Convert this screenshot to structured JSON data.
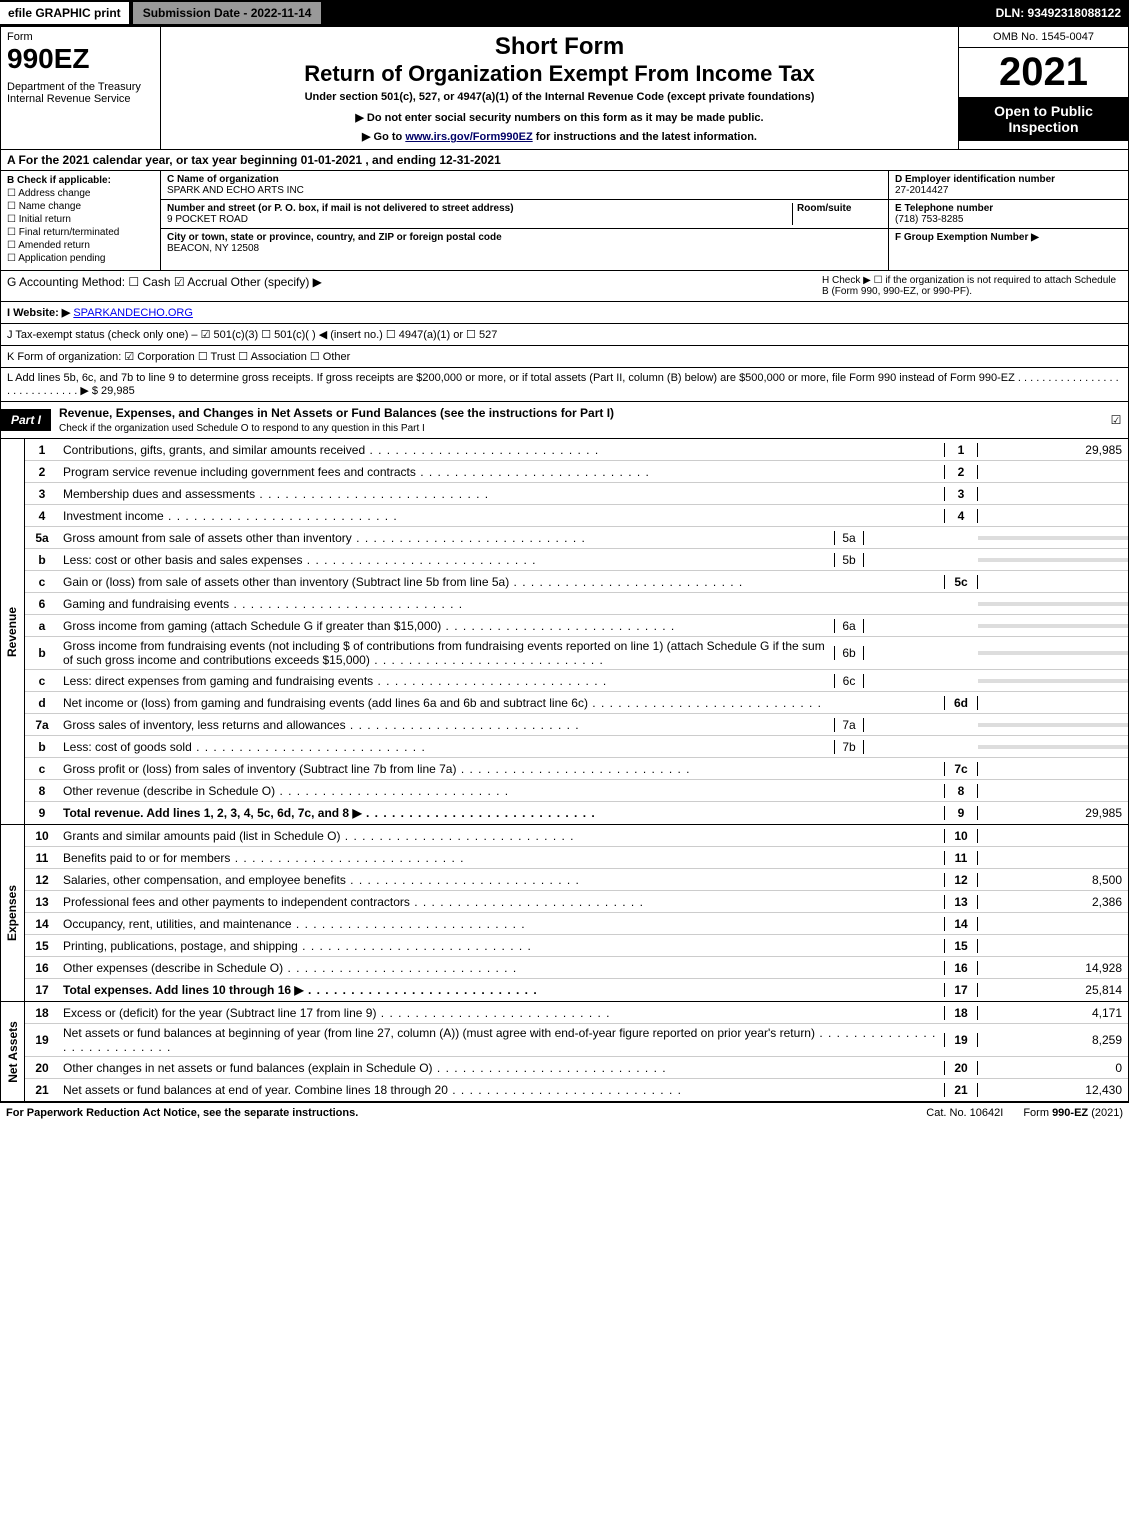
{
  "topbar": {
    "efile": "efile GRAPHIC print",
    "submission": "Submission Date - 2022-11-14",
    "dln": "DLN: 93492318088122"
  },
  "header": {
    "form_word": "Form",
    "form_num": "990EZ",
    "dept": "Department of the Treasury\nInternal Revenue Service",
    "short": "Short Form",
    "return": "Return of Organization Exempt From Income Tax",
    "under": "Under section 501(c), 527, or 4947(a)(1) of the Internal Revenue Code (except private foundations)",
    "note": "▶ Do not enter social security numbers on this form as it may be made public.",
    "goto_pre": "▶ Go to ",
    "goto_link": "www.irs.gov/Form990EZ",
    "goto_post": " for instructions and the latest information.",
    "omb": "OMB No. 1545-0047",
    "year": "2021",
    "open": "Open to Public Inspection"
  },
  "row_a": "A  For the 2021 calendar year, or tax year beginning 01-01-2021 , and ending 12-31-2021",
  "section_b": {
    "title": "B  Check if applicable:",
    "opts": [
      "Address change",
      "Name change",
      "Initial return",
      "Final return/terminated",
      "Amended return",
      "Application pending"
    ]
  },
  "section_c": {
    "name_lbl": "C Name of organization",
    "name": "SPARK AND ECHO ARTS INC",
    "street_lbl": "Number and street (or P. O. box, if mail is not delivered to street address)",
    "room_lbl": "Room/suite",
    "street": "9 POCKET ROAD",
    "city_lbl": "City or town, state or province, country, and ZIP or foreign postal code",
    "city": "BEACON, NY  12508"
  },
  "section_d": {
    "ein_lbl": "D Employer identification number",
    "ein": "27-2014427",
    "tel_lbl": "E Telephone number",
    "tel": "(718) 753-8285",
    "grp_lbl": "F Group Exemption Number   ▶"
  },
  "row_g": {
    "g": "G Accounting Method:   ☐ Cash   ☑ Accrual   Other (specify) ▶",
    "h": "H  Check ▶  ☐  if the organization is not required to attach Schedule B (Form 990, 990-EZ, or 990-PF)."
  },
  "row_i": {
    "label": "I Website: ▶",
    "link": "SPARKANDECHO.ORG"
  },
  "row_j": "J Tax-exempt status (check only one) – ☑ 501(c)(3) ☐ 501(c)(  ) ◀ (insert no.) ☐ 4947(a)(1) or ☐ 527",
  "row_k": "K Form of organization:   ☑ Corporation  ☐ Trust  ☐ Association  ☐ Other",
  "row_l": "L Add lines 5b, 6c, and 7b to line 9 to determine gross receipts. If gross receipts are $200,000 or more, or if total assets (Part II, column (B) below) are $500,000 or more, file Form 990 instead of Form 990-EZ . . . . . . . . . . . . . . . . . . . . . . . . . . . . . ▶ $ 29,985",
  "part1": {
    "tab": "Part I",
    "title": "Revenue, Expenses, and Changes in Net Assets or Fund Balances (see the instructions for Part I)",
    "sub": "Check if the organization used Schedule O to respond to any question in this Part I",
    "check": "☑"
  },
  "revenue_label": "Revenue",
  "expenses_label": "Expenses",
  "netassets_label": "Net Assets",
  "lines_rev": [
    {
      "n": "1",
      "d": "Contributions, gifts, grants, and similar amounts received",
      "r": "1",
      "v": "29,985"
    },
    {
      "n": "2",
      "d": "Program service revenue including government fees and contracts",
      "r": "2",
      "v": ""
    },
    {
      "n": "3",
      "d": "Membership dues and assessments",
      "r": "3",
      "v": ""
    },
    {
      "n": "4",
      "d": "Investment income",
      "r": "4",
      "v": ""
    },
    {
      "n": "5a",
      "d": "Gross amount from sale of assets other than inventory",
      "sn": "5a",
      "sv": "",
      "shade": true
    },
    {
      "n": "b",
      "d": "Less: cost or other basis and sales expenses",
      "sn": "5b",
      "sv": "",
      "shade": true
    },
    {
      "n": "c",
      "d": "Gain or (loss) from sale of assets other than inventory (Subtract line 5b from line 5a)",
      "r": "5c",
      "v": ""
    },
    {
      "n": "6",
      "d": "Gaming and fundraising events",
      "shade": true
    },
    {
      "n": "a",
      "d": "Gross income from gaming (attach Schedule G if greater than $15,000)",
      "sn": "6a",
      "sv": "",
      "shade": true
    },
    {
      "n": "b",
      "d": "Gross income from fundraising events (not including $                    of contributions from fundraising events reported on line 1) (attach Schedule G if the sum of such gross income and contributions exceeds $15,000)",
      "sn": "6b",
      "sv": "",
      "shade": true
    },
    {
      "n": "c",
      "d": "Less: direct expenses from gaming and fundraising events",
      "sn": "6c",
      "sv": "",
      "shade": true
    },
    {
      "n": "d",
      "d": "Net income or (loss) from gaming and fundraising events (add lines 6a and 6b and subtract line 6c)",
      "r": "6d",
      "v": ""
    },
    {
      "n": "7a",
      "d": "Gross sales of inventory, less returns and allowances",
      "sn": "7a",
      "sv": "",
      "shade": true
    },
    {
      "n": "b",
      "d": "Less: cost of goods sold",
      "sn": "7b",
      "sv": "",
      "shade": true
    },
    {
      "n": "c",
      "d": "Gross profit or (loss) from sales of inventory (Subtract line 7b from line 7a)",
      "r": "7c",
      "v": ""
    },
    {
      "n": "8",
      "d": "Other revenue (describe in Schedule O)",
      "r": "8",
      "v": ""
    },
    {
      "n": "9",
      "d": "Total revenue. Add lines 1, 2, 3, 4, 5c, 6d, 7c, and 8   ▶",
      "r": "9",
      "v": "29,985",
      "total": true
    }
  ],
  "lines_exp": [
    {
      "n": "10",
      "d": "Grants and similar amounts paid (list in Schedule O)",
      "r": "10",
      "v": ""
    },
    {
      "n": "11",
      "d": "Benefits paid to or for members",
      "r": "11",
      "v": ""
    },
    {
      "n": "12",
      "d": "Salaries, other compensation, and employee benefits",
      "r": "12",
      "v": "8,500"
    },
    {
      "n": "13",
      "d": "Professional fees and other payments to independent contractors",
      "r": "13",
      "v": "2,386"
    },
    {
      "n": "14",
      "d": "Occupancy, rent, utilities, and maintenance",
      "r": "14",
      "v": ""
    },
    {
      "n": "15",
      "d": "Printing, publications, postage, and shipping",
      "r": "15",
      "v": ""
    },
    {
      "n": "16",
      "d": "Other expenses (describe in Schedule O)",
      "r": "16",
      "v": "14,928"
    },
    {
      "n": "17",
      "d": "Total expenses. Add lines 10 through 16   ▶",
      "r": "17",
      "v": "25,814",
      "total": true
    }
  ],
  "lines_na": [
    {
      "n": "18",
      "d": "Excess or (deficit) for the year (Subtract line 17 from line 9)",
      "r": "18",
      "v": "4,171"
    },
    {
      "n": "19",
      "d": "Net assets or fund balances at beginning of year (from line 27, column (A)) (must agree with end-of-year figure reported on prior year's return)",
      "r": "19",
      "v": "8,259"
    },
    {
      "n": "20",
      "d": "Other changes in net assets or fund balances (explain in Schedule O)",
      "r": "20",
      "v": "0"
    },
    {
      "n": "21",
      "d": "Net assets or fund balances at end of year. Combine lines 18 through 20",
      "r": "21",
      "v": "12,430"
    }
  ],
  "footer": {
    "l": "For Paperwork Reduction Act Notice, see the separate instructions.",
    "m": "Cat. No. 10642I",
    "r": "Form 990-EZ (2021)"
  }
}
